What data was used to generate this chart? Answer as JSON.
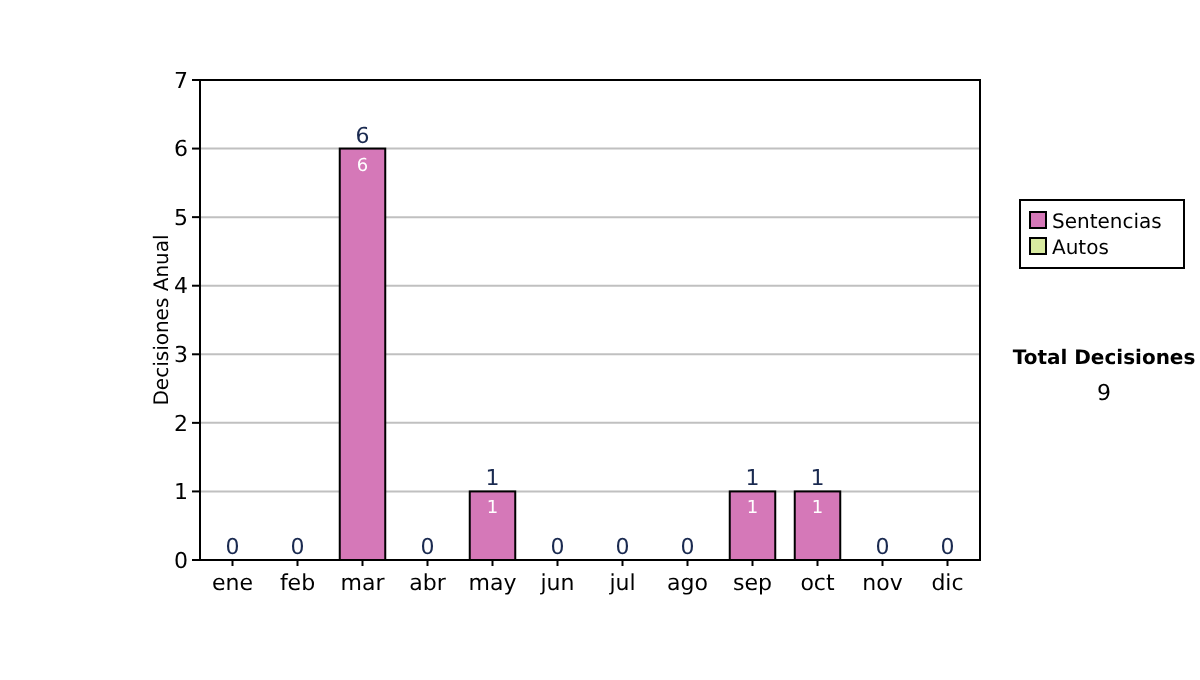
{
  "chart_data": {
    "type": "bar",
    "stacked": true,
    "ylabel": "Decisiones Anual",
    "categories": [
      "ene",
      "feb",
      "mar",
      "abr",
      "may",
      "jun",
      "jul",
      "ago",
      "sep",
      "oct",
      "nov",
      "dic"
    ],
    "series": [
      {
        "name": "Sentencias",
        "color": "#d578b8",
        "values": [
          0,
          0,
          6,
          0,
          1,
          0,
          0,
          0,
          1,
          1,
          0,
          0
        ],
        "value_labels": [
          null,
          null,
          "6",
          null,
          "1",
          null,
          null,
          null,
          "1",
          "1",
          null,
          null
        ]
      },
      {
        "name": "Autos",
        "color": "#d8eaa0",
        "values": [
          0,
          0,
          0,
          0,
          0,
          0,
          0,
          0,
          0,
          0,
          0,
          0
        ]
      }
    ],
    "totals": [
      "0",
      "0",
      "6",
      "0",
      "1",
      "0",
      "0",
      "0",
      "1",
      "1",
      "0",
      "0"
    ],
    "ylim": [
      0,
      7
    ],
    "yticks": [
      0,
      1,
      2,
      3,
      4,
      5,
      6,
      7
    ],
    "grid": "y",
    "legend": "right",
    "annotations": [
      "Total Decisiones",
      "9"
    ]
  }
}
